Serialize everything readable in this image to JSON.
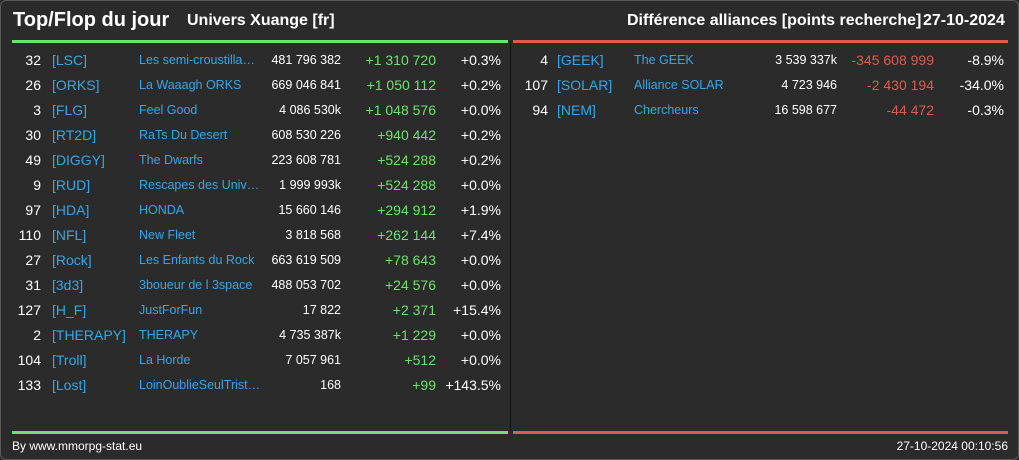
{
  "header": {
    "title": "Top/Flop du jour",
    "universe": "Univers Xuange [fr]",
    "section_title": "Différence alliances [points recherche]",
    "date": "27-10-2024"
  },
  "top": [
    {
      "rank": "32",
      "tag": "[LSC]",
      "name": "Les semi-croustilla…",
      "points": "481 796 382",
      "diff": "+1 310 720",
      "pct": "+0.3%"
    },
    {
      "rank": "26",
      "tag": "[ORKS]",
      "name": "La Waaagh ORKS",
      "points": "669 046 841",
      "diff": "+1 050 112",
      "pct": "+0.2%"
    },
    {
      "rank": "3",
      "tag": "[FLG]",
      "name": "Feel Good",
      "points": "4 086 530k",
      "diff": "+1 048 576",
      "pct": "+0.0%"
    },
    {
      "rank": "30",
      "tag": "[RT2D]",
      "name": "RaTs Du Desert",
      "points": "608 530 226",
      "diff": "+940 442",
      "pct": "+0.2%"
    },
    {
      "rank": "49",
      "tag": "[DIGGY]",
      "name": "The Dwarfs",
      "points": "223 608 781",
      "diff": "+524 288",
      "pct": "+0.2%"
    },
    {
      "rank": "9",
      "tag": "[RUD]",
      "name": "Rescapes des Univ…",
      "points": "1 999 993k",
      "diff": "+524 288",
      "pct": "+0.0%"
    },
    {
      "rank": "97",
      "tag": "[HDA]",
      "name": "HONDA",
      "points": "15 660 146",
      "diff": "+294 912",
      "pct": "+1.9%"
    },
    {
      "rank": "110",
      "tag": "[NFL]",
      "name": "New Fleet",
      "points": "3 818 568",
      "diff": "+262 144",
      "pct": "+7.4%"
    },
    {
      "rank": "27",
      "tag": "[Rock]",
      "name": "Les Enfants du Rock",
      "points": "663 619 509",
      "diff": "+78 643",
      "pct": "+0.0%"
    },
    {
      "rank": "31",
      "tag": "[3d3]",
      "name": "3boueur de l 3space",
      "points": "488 053 702",
      "diff": "+24 576",
      "pct": "+0.0%"
    },
    {
      "rank": "127",
      "tag": "[H_F]",
      "name": "JustForFun",
      "points": "17 822",
      "diff": "+2 371",
      "pct": "+15.4%"
    },
    {
      "rank": "2",
      "tag": "[THERAPY]",
      "name": "THERAPY",
      "points": "4 735 387k",
      "diff": "+1 229",
      "pct": "+0.0%"
    },
    {
      "rank": "104",
      "tag": "[Troll]",
      "name": "La Horde",
      "points": "7 057 961",
      "diff": "+512",
      "pct": "+0.0%"
    },
    {
      "rank": "133",
      "tag": "[Lost]",
      "name": "LoinOublieSeulTrist…",
      "points": "168",
      "diff": "+99",
      "pct": "+143.5%"
    }
  ],
  "flop": [
    {
      "rank": "4",
      "tag": "[GEEK]",
      "name": "The GEEK",
      "points": "3 539 337k",
      "diff": "-345 608 999",
      "pct": "-8.9%"
    },
    {
      "rank": "107",
      "tag": "[SOLAR]",
      "name": "Alliance SOLAR",
      "points": "4 723 946",
      "diff": "-2 430 194",
      "pct": "-34.0%"
    },
    {
      "rank": "94",
      "tag": "[NEM]",
      "name": "Chercheurs",
      "points": "16 598 677",
      "diff": "-44 472",
      "pct": "-0.3%"
    }
  ],
  "footer": {
    "source": "By www.mmorpg-stat.eu",
    "timestamp": "27-10-2024 00:10:56"
  },
  "colors": {
    "positive": "#6ee26e",
    "negative": "#e05a4e",
    "link": "#35a7e8"
  }
}
